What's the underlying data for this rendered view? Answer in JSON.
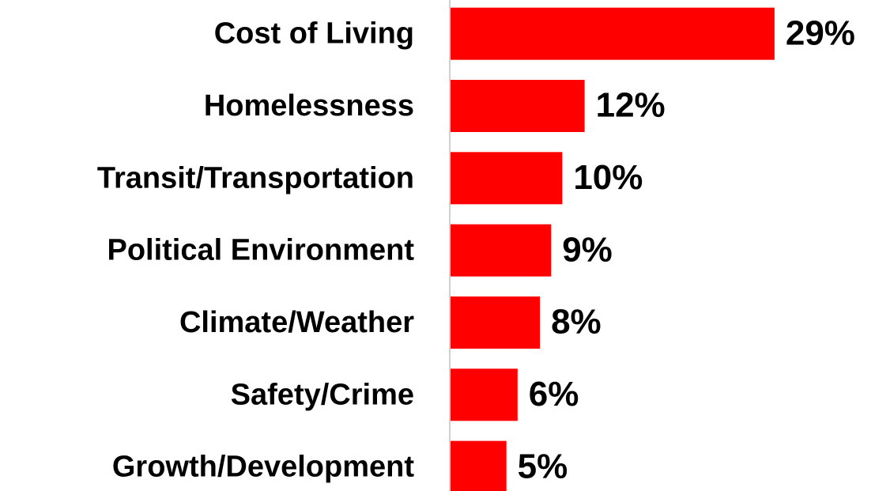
{
  "chart_data": {
    "type": "barh",
    "categories": [
      "Cost of Living",
      "Homelessness",
      "Transit/Transportation",
      "Political Environment",
      "Climate/Weather",
      "Safety/Crime",
      "Growth/Development"
    ],
    "values": [
      29,
      12,
      10,
      9,
      8,
      6,
      5
    ],
    "value_labels": [
      "29%",
      "12%",
      "10%",
      "9%",
      "8%",
      "6%",
      "5%"
    ],
    "color": "#ff0000",
    "xlim": [
      0,
      30
    ]
  }
}
